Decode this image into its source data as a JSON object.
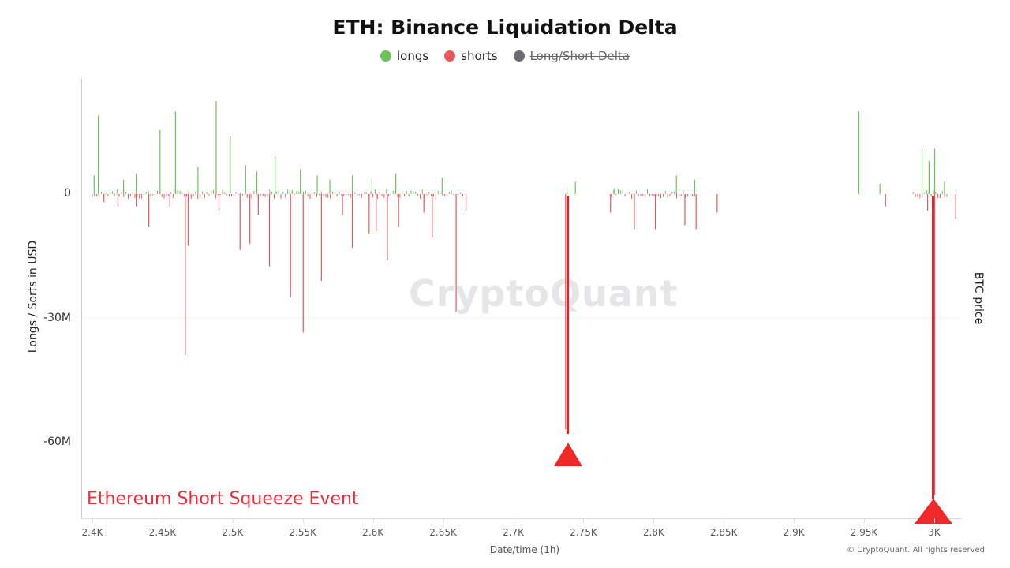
{
  "title": "ETH: Binance Liquidation Delta",
  "legend": [
    {
      "label": "longs",
      "color": "#6cc35a",
      "active": true
    },
    {
      "label": "shorts",
      "color": "#e8585e",
      "active": true
    },
    {
      "label": "Long/Short Delta",
      "color": "#6b6b73",
      "active": false
    }
  ],
  "axes": {
    "ylabel": "Longs / Sorts in USD",
    "y2label": "BTC price",
    "xlabel": "Date/time (1h)",
    "yticks": [
      "0",
      "-30M",
      "-60M"
    ],
    "xticks": [
      "2.4K",
      "2.45K",
      "2.5K",
      "2.55K",
      "2.6K",
      "2.65K",
      "2.7K",
      "2.75K",
      "2.8K",
      "2.85K",
      "2.9K",
      "2.95K",
      "3K"
    ]
  },
  "watermark": "CryptoQuant",
  "annotation": "Ethereum Short Squeeze Event",
  "copyright": "© CryptoQuant. All rights reserved",
  "chart_data": {
    "type": "bar",
    "title": "ETH: Binance Liquidation Delta",
    "xlabel": "Date/time (1h)",
    "ylabel": "Longs / Sorts in USD",
    "y2label": "BTC price",
    "ylim": [
      -75000000,
      25000000
    ],
    "xlim": [
      2400,
      3020
    ],
    "legend_position": "top",
    "grid": true,
    "series": [
      {
        "name": "longs",
        "color": "#6cc35a",
        "points": [
          [
            2401,
            4500000
          ],
          [
            2404,
            19000000
          ],
          [
            2422,
            3500000
          ],
          [
            2431,
            5000000
          ],
          [
            2448,
            15500000
          ],
          [
            2459,
            20000000
          ],
          [
            2475,
            6500000
          ],
          [
            2488,
            22500000
          ],
          [
            2498,
            14000000
          ],
          [
            2509,
            7000000
          ],
          [
            2517,
            5500000
          ],
          [
            2530,
            9000000
          ],
          [
            2548,
            6000000
          ],
          [
            2560,
            4500000
          ],
          [
            2569,
            3500000
          ],
          [
            2585,
            4500000
          ],
          [
            2599,
            3500000
          ],
          [
            2616,
            5000000
          ],
          [
            2649,
            4000000
          ],
          [
            2738,
            1500000
          ],
          [
            2744,
            3000000
          ],
          [
            2772,
            1500000
          ],
          [
            2816,
            4500000
          ],
          [
            2829,
            3500000
          ],
          [
            2946,
            20000000
          ],
          [
            2961,
            2500000
          ],
          [
            2991,
            11000000
          ],
          [
            2996,
            8000000
          ],
          [
            3000,
            11000000
          ],
          [
            3007,
            3000000
          ]
        ]
      },
      {
        "name": "shorts",
        "color": "#e8585e",
        "points": [
          [
            2408,
            -2000000
          ],
          [
            2418,
            -3000000
          ],
          [
            2431,
            -3000000
          ],
          [
            2440,
            -8000000
          ],
          [
            2455,
            -3000000
          ],
          [
            2466,
            -39000000
          ],
          [
            2468,
            -12500000
          ],
          [
            2490,
            -4000000
          ],
          [
            2505,
            -13500000
          ],
          [
            2512,
            -12000000
          ],
          [
            2518,
            -5000000
          ],
          [
            2526,
            -17500000
          ],
          [
            2541,
            -25000000
          ],
          [
            2550,
            -33500000
          ],
          [
            2563,
            -21000000
          ],
          [
            2578,
            -5000000
          ],
          [
            2585,
            -13000000
          ],
          [
            2597,
            -9500000
          ],
          [
            2602,
            -9000000
          ],
          [
            2610,
            -16000000
          ],
          [
            2618,
            -8000000
          ],
          [
            2636,
            -4500000
          ],
          [
            2642,
            -10500000
          ],
          [
            2659,
            -28500000
          ],
          [
            2666,
            -4000000
          ],
          [
            2737,
            -57000000
          ],
          [
            2769,
            -4500000
          ],
          [
            2786,
            -8500000
          ],
          [
            2801,
            -8500000
          ],
          [
            2822,
            -7500000
          ],
          [
            2830,
            -8500000
          ],
          [
            2845,
            -4500000
          ],
          [
            2965,
            -3000000
          ],
          [
            2995,
            -4000000
          ],
          [
            3000,
            -73000000
          ],
          [
            3015,
            -6000000
          ]
        ]
      }
    ],
    "annotations": [
      {
        "text": "Ethereum Short Squeeze Event",
        "type": "label"
      },
      {
        "type": "arrow",
        "x": 2737,
        "y": -57000000
      },
      {
        "type": "arrow",
        "x": 3000,
        "y": -73000000
      }
    ]
  }
}
